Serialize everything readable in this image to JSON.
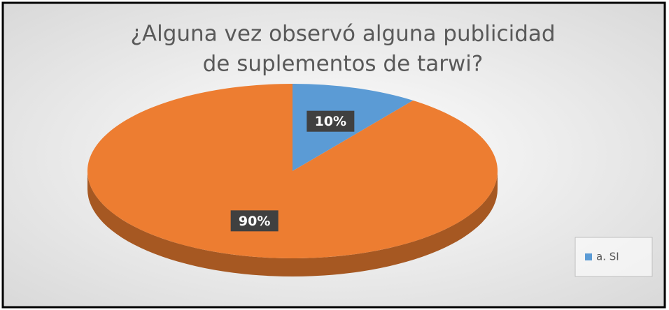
{
  "chart_data": {
    "type": "pie",
    "title": [
      "¿Alguna vez observó alguna publicidad",
      "de suplementos de tarwi?"
    ],
    "categories": [
      "a. SI",
      null
    ],
    "values": [
      10,
      90
    ],
    "value_labels": [
      "10%",
      "90%"
    ],
    "colors": [
      "#5b9bd5",
      "#ed7d31"
    ],
    "legend": "right"
  }
}
